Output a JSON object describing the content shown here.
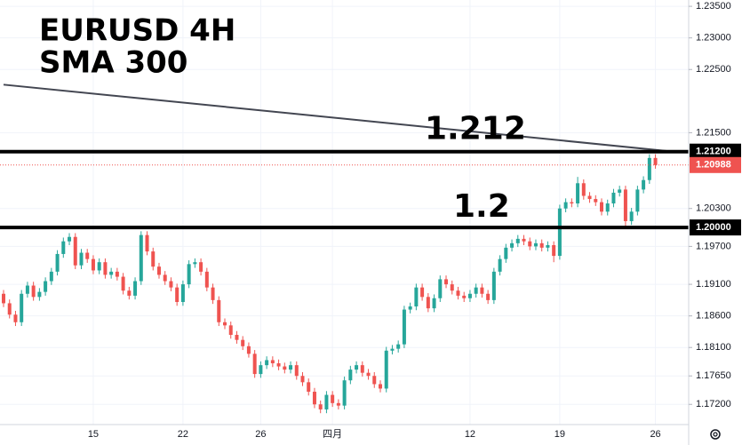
{
  "chart_data": {
    "type": "candlestick",
    "title": "EURUSD 4H",
    "subtitle": "SMA 300",
    "categories": [
      null,
      null,
      null,
      null,
      null,
      null,
      null,
      null,
      null,
      null,
      null,
      null,
      null,
      null,
      null,
      "15",
      null,
      null,
      null,
      null,
      null,
      null,
      null,
      null,
      null,
      null,
      null,
      null,
      null,
      null,
      "22",
      null,
      null,
      null,
      null,
      null,
      null,
      null,
      null,
      null,
      null,
      null,
      null,
      "26",
      null,
      null,
      null,
      null,
      null,
      null,
      null,
      null,
      null,
      null,
      null,
      "四月",
      null,
      null,
      null,
      null,
      null,
      null,
      null,
      null,
      null,
      null,
      null,
      null,
      null,
      null,
      null,
      null,
      null,
      null,
      null,
      null,
      null,
      null,
      "12",
      null,
      null,
      null,
      null,
      null,
      null,
      null,
      null,
      null,
      null,
      null,
      null,
      null,
      null,
      "19",
      null,
      null,
      null,
      null,
      null,
      null,
      null,
      null,
      null,
      null,
      null,
      null,
      null,
      null,
      null,
      "26"
    ],
    "open": [
      1.1895,
      1.188,
      1.1862,
      1.185,
      1.1895,
      1.1908,
      1.189,
      1.1898,
      1.1915,
      1.193,
      1.1958,
      1.1978,
      1.1985,
      1.194,
      1.196,
      1.195,
      1.1932,
      1.1945,
      1.1925,
      1.193,
      1.1922,
      1.19,
      1.1892,
      1.1915,
      1.1988,
      1.1962,
      1.1938,
      1.1925,
      1.1915,
      1.1905,
      1.1882,
      1.191,
      1.1942,
      1.1945,
      1.193,
      1.1905,
      1.1885,
      1.185,
      1.1845,
      1.183,
      1.1822,
      1.1812,
      1.18,
      1.1768,
      1.1782,
      1.179,
      1.1785,
      1.178,
      1.1775,
      1.1782,
      1.1765,
      1.1755,
      1.174,
      1.172,
      1.1712,
      1.1735,
      1.1722,
      1.1718,
      1.1758,
      1.1775,
      1.1782,
      1.177,
      1.1765,
      1.1752,
      1.1745,
      1.1805,
      1.1808,
      1.1815,
      1.187,
      1.1875,
      1.1905,
      1.189,
      1.1872,
      1.1888,
      1.1918,
      1.191,
      1.19,
      1.1892,
      1.1888,
      1.1895,
      1.1905,
      1.1895,
      1.1885,
      1.193,
      1.195,
      1.1968,
      1.1975,
      1.1982,
      1.1978,
      1.197,
      1.1975,
      1.1968,
      1.1972,
      1.1955,
      1.203,
      1.204,
      1.2038,
      1.207,
      1.205,
      1.2045,
      1.204,
      1.2025,
      1.2038,
      1.2055,
      1.206,
      1.201,
      1.2025,
      1.206,
      1.2075,
      1.211
    ],
    "high": [
      1.1901,
      1.1886,
      1.1868,
      1.1901,
      1.1914,
      1.1914,
      1.1904,
      1.1921,
      1.1936,
      1.1964,
      1.1984,
      1.1991,
      1.1991,
      1.1966,
      1.1966,
      1.1956,
      1.1951,
      1.1951,
      1.1936,
      1.1936,
      1.1928,
      1.1906,
      1.1921,
      1.1994,
      1.1994,
      1.1968,
      1.1944,
      1.1931,
      1.1921,
      1.1911,
      1.1916,
      1.1948,
      1.1951,
      1.1951,
      1.1936,
      1.1911,
      1.1891,
      1.1856,
      1.1851,
      1.1836,
      1.1828,
      1.1818,
      1.1806,
      1.1788,
      1.1796,
      1.1796,
      1.1791,
      1.1786,
      1.1788,
      1.1788,
      1.1771,
      1.1761,
      1.1746,
      1.1726,
      1.1741,
      1.1741,
      1.1728,
      1.1764,
      1.1781,
      1.1788,
      1.1788,
      1.1776,
      1.1771,
      1.1758,
      1.1811,
      1.1814,
      1.1821,
      1.1876,
      1.1881,
      1.1911,
      1.1911,
      1.1896,
      1.1894,
      1.1924,
      1.1924,
      1.1916,
      1.1906,
      1.1898,
      1.1901,
      1.1911,
      1.1911,
      1.1901,
      1.1936,
      1.1956,
      1.1974,
      1.1981,
      1.1988,
      1.1988,
      1.1984,
      1.1981,
      1.1981,
      1.1978,
      1.1978,
      1.2036,
      1.2046,
      1.2046,
      1.208,
      1.2076,
      1.2056,
      1.2051,
      1.2046,
      1.2044,
      1.2061,
      1.2066,
      1.2066,
      1.2031,
      1.2066,
      1.2081,
      1.2116,
      1.2116
    ],
    "low": [
      1.1874,
      1.1856,
      1.1844,
      1.1844,
      1.1889,
      1.1884,
      1.1884,
      1.1892,
      1.1909,
      1.1924,
      1.1952,
      1.1972,
      1.1934,
      1.1934,
      1.1944,
      1.1926,
      1.1926,
      1.1919,
      1.1919,
      1.1916,
      1.1894,
      1.1886,
      1.1886,
      1.1909,
      1.1956,
      1.1932,
      1.1919,
      1.1909,
      1.1899,
      1.1876,
      1.1876,
      1.1904,
      1.1936,
      1.1924,
      1.1899,
      1.1879,
      1.1844,
      1.1839,
      1.1824,
      1.1816,
      1.1806,
      1.1794,
      1.1762,
      1.1762,
      1.1776,
      1.1779,
      1.1774,
      1.1769,
      1.1769,
      1.1759,
      1.1749,
      1.1734,
      1.1714,
      1.1706,
      1.1706,
      1.1716,
      1.1712,
      1.1712,
      1.1752,
      1.1769,
      1.1764,
      1.1759,
      1.1746,
      1.1739,
      1.1739,
      1.1799,
      1.1802,
      1.1809,
      1.1864,
      1.1869,
      1.1884,
      1.1866,
      1.1866,
      1.1882,
      1.1904,
      1.1894,
      1.1886,
      1.1882,
      1.1882,
      1.1889,
      1.1889,
      1.1879,
      1.1879,
      1.1924,
      1.1944,
      1.1962,
      1.1969,
      1.1972,
      1.1964,
      1.1964,
      1.1962,
      1.1962,
      1.1945,
      1.1949,
      1.2024,
      1.2032,
      1.2032,
      1.2044,
      1.2039,
      1.2034,
      1.2019,
      1.2019,
      1.2032,
      1.2049,
      1.1998,
      1.2004,
      1.2019,
      1.2054,
      1.2069,
      1.2093
    ],
    "close": [
      1.188,
      1.1862,
      1.185,
      1.1895,
      1.1908,
      1.189,
      1.1898,
      1.1915,
      1.193,
      1.1958,
      1.1978,
      1.1985,
      1.194,
      1.196,
      1.195,
      1.1932,
      1.1945,
      1.1925,
      1.193,
      1.1922,
      1.19,
      1.1892,
      1.1915,
      1.1988,
      1.1962,
      1.1938,
      1.1925,
      1.1915,
      1.1905,
      1.1882,
      1.191,
      1.1942,
      1.1945,
      1.193,
      1.1905,
      1.1885,
      1.185,
      1.1845,
      1.183,
      1.1822,
      1.1812,
      1.18,
      1.1768,
      1.1782,
      1.179,
      1.1785,
      1.178,
      1.1775,
      1.1782,
      1.1765,
      1.1755,
      1.174,
      1.172,
      1.1712,
      1.1735,
      1.1722,
      1.1718,
      1.1758,
      1.1775,
      1.1782,
      1.177,
      1.1765,
      1.1752,
      1.1745,
      1.1805,
      1.1808,
      1.1815,
      1.187,
      1.1875,
      1.1905,
      1.189,
      1.1872,
      1.1888,
      1.1918,
      1.191,
      1.19,
      1.1892,
      1.1888,
      1.1895,
      1.1905,
      1.1895,
      1.1885,
      1.193,
      1.195,
      1.1968,
      1.1975,
      1.1982,
      1.1978,
      1.197,
      1.1975,
      1.1968,
      1.1972,
      1.1955,
      1.203,
      1.204,
      1.2038,
      1.207,
      1.205,
      1.2045,
      1.204,
      1.2025,
      1.2038,
      1.2055,
      1.206,
      1.201,
      1.2025,
      1.206,
      1.2075,
      1.211,
      1.20988
    ],
    "up_color": "#26a69a",
    "down_color": "#ef5350",
    "ylim": [
      1.1688,
      1.236
    ],
    "yticks": [
      {
        "value": 1.235,
        "label": "1.23500"
      },
      {
        "value": 1.23,
        "label": "1.23000"
      },
      {
        "value": 1.225,
        "label": "1.22500"
      },
      {
        "value": 1.215,
        "label": "1.21500"
      },
      {
        "value": 1.203,
        "label": "1.20300"
      },
      {
        "value": 1.197,
        "label": "1.19700"
      },
      {
        "value": 1.191,
        "label": "1.19100"
      },
      {
        "value": 1.186,
        "label": "1.18600"
      },
      {
        "value": 1.181,
        "label": "1.18100"
      },
      {
        "value": 1.1765,
        "label": "1.17650"
      },
      {
        "value": 1.172,
        "label": "1.17200"
      }
    ],
    "grid": true,
    "levels": [
      {
        "value": 1.212,
        "label": "1.21200",
        "text": "1.212"
      },
      {
        "value": 1.2,
        "label": "1.20000",
        "text": "1.2"
      }
    ],
    "last_price": {
      "value": 1.20988,
      "label": "1.20988",
      "color": "#ef5350"
    },
    "sma": {
      "x": [
        0,
        112
      ],
      "values": [
        1.2226,
        1.212
      ],
      "color": "#434651"
    }
  }
}
